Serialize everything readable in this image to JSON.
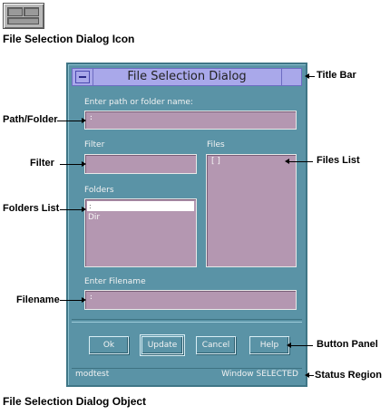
{
  "captions": {
    "icon": "File Selection Dialog Icon",
    "object": "File Selection Dialog Object"
  },
  "dialog": {
    "title": "File Selection Dialog",
    "path_label": "Enter path or folder name:",
    "path_value": ":",
    "filter_label": "Filter",
    "filter_value": "",
    "files_label": "Files",
    "files_items": [
      "[ ]"
    ],
    "folders_label": "Folders",
    "folders_items": [
      ":",
      "Dir"
    ],
    "filename_label": "Enter Filename",
    "filename_value": ":",
    "buttons": {
      "ok": "Ok",
      "update": "Update",
      "cancel": "Cancel",
      "help": "Help"
    },
    "status_left": "modtest",
    "status_right": "Window SELECTED"
  },
  "callouts": {
    "title_bar": "Title Bar",
    "path_folder": "Path/Folder",
    "filter": "Filter",
    "files_list": "Files List",
    "folders_list": "Folders List",
    "filename": "Filename",
    "button_panel": "Button Panel",
    "status_region": "Status Region"
  },
  "colors": {
    "dialog_bg": "#5a93a6",
    "title_bar": "#a9a8ea",
    "field_bg": "#b497b1"
  }
}
